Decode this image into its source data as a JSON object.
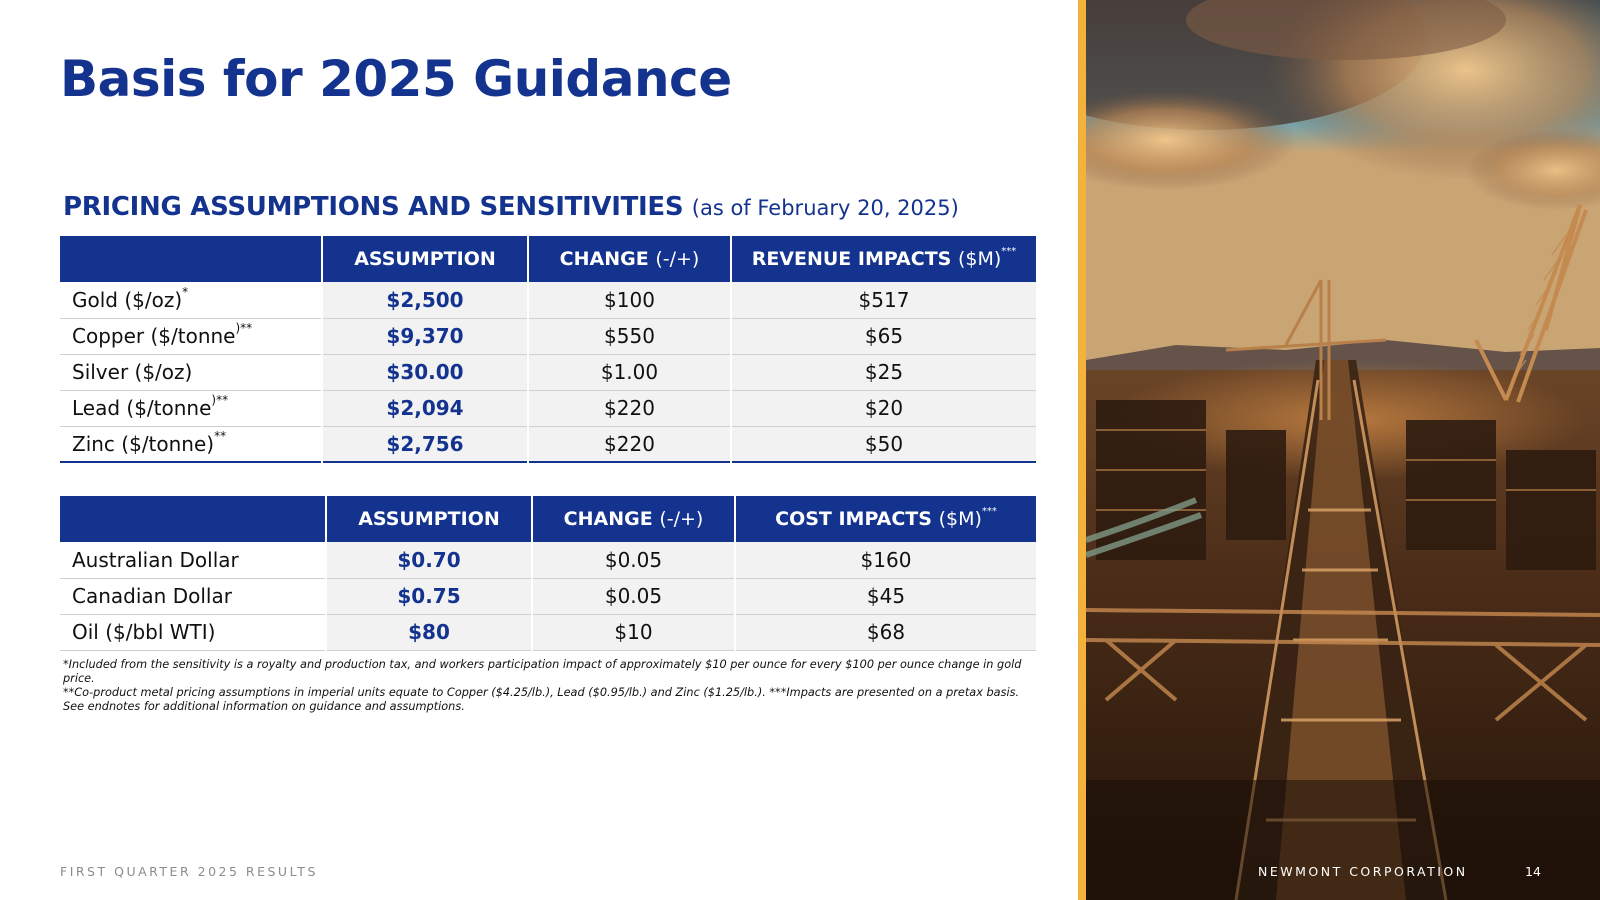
{
  "title": "Basis for 2025 Guidance",
  "section": {
    "heading": "PRICING ASSUMPTIONS AND SENSITIVITIES",
    "date_note": "(as of February 20, 2025)"
  },
  "pricing_table": {
    "headers": {
      "assumption": "ASSUMPTION",
      "change": "CHANGE",
      "change_sub": "(-/+)",
      "impact": "REVENUE IMPACTS",
      "impact_sub": "($M)",
      "impact_mark": "***"
    },
    "rows": [
      {
        "metal": "Gold ($/oz)",
        "mark": "*",
        "assumption": "$2,500",
        "change": "$100",
        "impact": "$517"
      },
      {
        "metal": "Copper ($/tonne",
        "mark": ")**",
        "assumption": "$9,370",
        "change": "$550",
        "impact": "$65"
      },
      {
        "metal": "Silver ($/oz)",
        "mark": "",
        "assumption": "$30.00",
        "change": "$1.00",
        "impact": "$25"
      },
      {
        "metal": "Lead ($/tonne",
        "mark": ")**",
        "assumption": "$2,094",
        "change": "$220",
        "impact": "$20"
      },
      {
        "metal": "Zinc ($/tonne)",
        "mark": "**",
        "assumption": "$2,756",
        "change": "$220",
        "impact": "$50"
      }
    ]
  },
  "cost_table": {
    "headers": {
      "assumption": "ASSUMPTION",
      "change": "CHANGE",
      "change_sub": "(-/+)",
      "impact": "COST IMPACTS",
      "impact_sub": "($M)",
      "impact_mark": "***"
    },
    "rows": [
      {
        "item": "Australian Dollar",
        "assumption": "$0.70",
        "change": "$0.05",
        "impact": "$160"
      },
      {
        "item": "Canadian Dollar",
        "assumption": "$0.75",
        "change": "$0.05",
        "impact": "$45"
      },
      {
        "item": "Oil ($/bbl WTI)",
        "assumption": "$80",
        "change": "$10",
        "impact": "$68"
      }
    ]
  },
  "footnotes": [
    "*Included from the sensitivity is a royalty and production tax, and workers participation impact of approximately $10 per ounce for every $100 per ounce change in gold price.",
    "**Co-product metal pricing assumptions in imperial units equate to Copper ($4.25/lb.), Lead ($0.95/lb.) and Zinc ($1.25/lb.). ***Impacts are presented on a pretax basis.",
    "See endnotes for additional information on guidance and assumptions."
  ],
  "footer": {
    "left": "FIRST QUARTER 2025 RESULTS",
    "company": "NEWMONT CORPORATION",
    "page": "14"
  },
  "colors": {
    "brand_blue": "#13338f",
    "accent_gold": "#f3b23c"
  }
}
